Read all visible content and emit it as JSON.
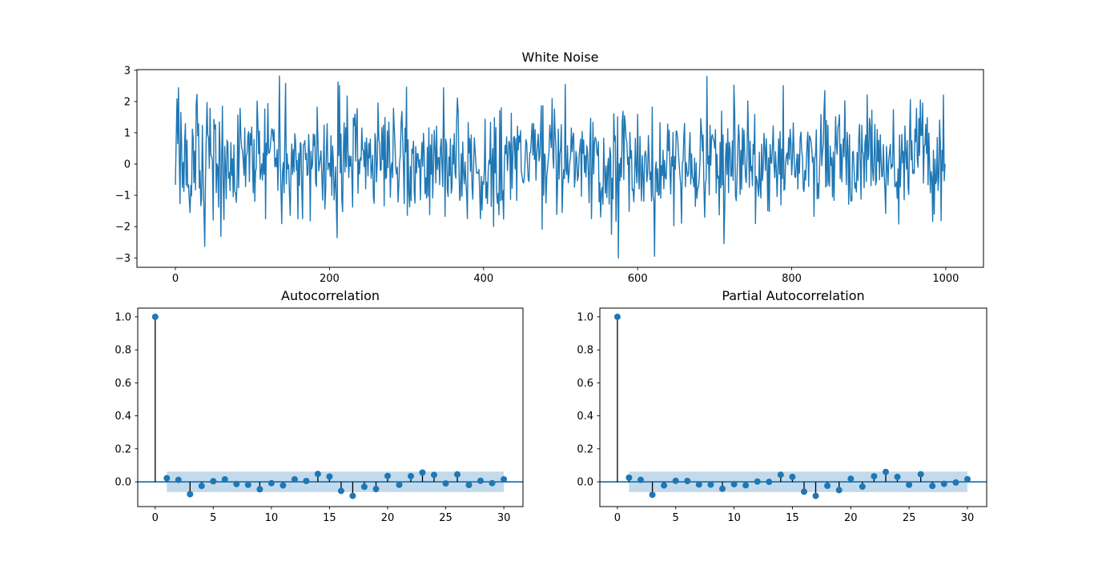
{
  "figure": {
    "background": "#ffffff",
    "accent_color": "#1f77b4",
    "stem_color": "#000000",
    "spine_color": "#000000",
    "band_opacity": 0.27
  },
  "chart_data": [
    {
      "id": "white_noise",
      "type": "line",
      "title": "White Noise",
      "xlabel": "",
      "ylabel": "",
      "xlim": [
        -49.95,
        1048.95
      ],
      "ylim": [
        -3.3,
        3.02
      ],
      "xticks": {
        "values": [
          0,
          200,
          400,
          600,
          800,
          1000
        ],
        "labels": [
          "0",
          "200",
          "400",
          "600",
          "800",
          "1000"
        ]
      },
      "yticks": {
        "values": [
          3,
          2,
          1,
          0,
          -1,
          -2,
          -3
        ],
        "labels": [
          "3",
          "2",
          "1",
          "0",
          "−1",
          "−2",
          "−3"
        ]
      },
      "grid": false,
      "legend": false,
      "line_color": "#1f77b4",
      "series": {
        "kind": "gaussian-white-noise",
        "n": 1000,
        "mean": 0,
        "sigma": 0.95,
        "seed": 13,
        "clip": [
          -3.02,
          2.82
        ],
        "observed_min": -3.0,
        "observed_max": 2.8,
        "landmarks": [
          [
            143,
            2.58
          ],
          [
            211,
            2.62
          ],
          [
            575,
            -3.0
          ],
          [
            622,
            -2.95
          ],
          [
            690,
            2.8
          ],
          [
            843,
            2.35
          ],
          [
            997,
            2.2
          ]
        ]
      }
    },
    {
      "id": "acf",
      "type": "stem",
      "title": "Autocorrelation",
      "xlabel": "",
      "ylabel": "",
      "xlim": [
        -1.5,
        31.65
      ],
      "ylim": [
        -0.15,
        1.053
      ],
      "xticks": {
        "values": [
          0,
          5,
          10,
          15,
          20,
          25,
          30
        ],
        "labels": [
          "0",
          "5",
          "10",
          "15",
          "20",
          "25",
          "30"
        ]
      },
      "yticks": {
        "values": [
          1.0,
          0.8,
          0.6,
          0.4,
          0.2,
          0.0
        ],
        "labels": [
          "1.0",
          "0.8",
          "0.6",
          "0.4",
          "0.2",
          "0.0"
        ]
      },
      "grid": false,
      "legend": false,
      "lags": [
        0,
        1,
        2,
        3,
        4,
        5,
        6,
        7,
        8,
        9,
        10,
        11,
        12,
        13,
        14,
        15,
        16,
        17,
        18,
        19,
        20,
        21,
        22,
        23,
        24,
        25,
        26,
        27,
        28,
        29,
        30
      ],
      "values": [
        1.0,
        0.022,
        0.012,
        -0.075,
        -0.025,
        0.004,
        0.015,
        -0.013,
        -0.018,
        -0.045,
        -0.008,
        -0.022,
        0.015,
        0.005,
        0.048,
        0.032,
        -0.055,
        -0.085,
        -0.03,
        -0.044,
        0.036,
        -0.018,
        0.035,
        0.056,
        0.042,
        -0.01,
        0.045,
        -0.019,
        0.006,
        -0.008,
        0.015
      ],
      "conf_band": {
        "lag_start": 1,
        "lag_end": 30,
        "lower": -0.062,
        "upper": 0.062
      }
    },
    {
      "id": "pacf",
      "type": "stem",
      "title": "Partial Autocorrelation",
      "xlabel": "",
      "ylabel": "",
      "xlim": [
        -1.5,
        31.65
      ],
      "ylim": [
        -0.15,
        1.053
      ],
      "xticks": {
        "values": [
          0,
          5,
          10,
          15,
          20,
          25,
          30
        ],
        "labels": [
          "0",
          "5",
          "10",
          "15",
          "20",
          "25",
          "30"
        ]
      },
      "yticks": {
        "values": [
          1.0,
          0.8,
          0.6,
          0.4,
          0.2,
          0.0
        ],
        "labels": [
          "1.0",
          "0.8",
          "0.6",
          "0.4",
          "0.2",
          "0.0"
        ]
      },
      "grid": false,
      "legend": false,
      "lags": [
        0,
        1,
        2,
        3,
        4,
        5,
        6,
        7,
        8,
        9,
        10,
        11,
        12,
        13,
        14,
        15,
        16,
        17,
        18,
        19,
        20,
        21,
        22,
        23,
        24,
        25,
        26,
        27,
        28,
        29,
        30
      ],
      "values": [
        1.0,
        0.025,
        0.012,
        -0.078,
        -0.022,
        0.006,
        0.005,
        -0.016,
        -0.017,
        -0.042,
        -0.014,
        -0.021,
        0.002,
        0.0,
        0.043,
        0.03,
        -0.06,
        -0.085,
        -0.024,
        -0.05,
        0.019,
        -0.029,
        0.034,
        0.06,
        0.03,
        -0.018,
        0.046,
        -0.025,
        -0.012,
        -0.004,
        0.016
      ],
      "conf_band": {
        "lag_start": 1,
        "lag_end": 30,
        "lower": -0.062,
        "upper": 0.062
      }
    }
  ]
}
